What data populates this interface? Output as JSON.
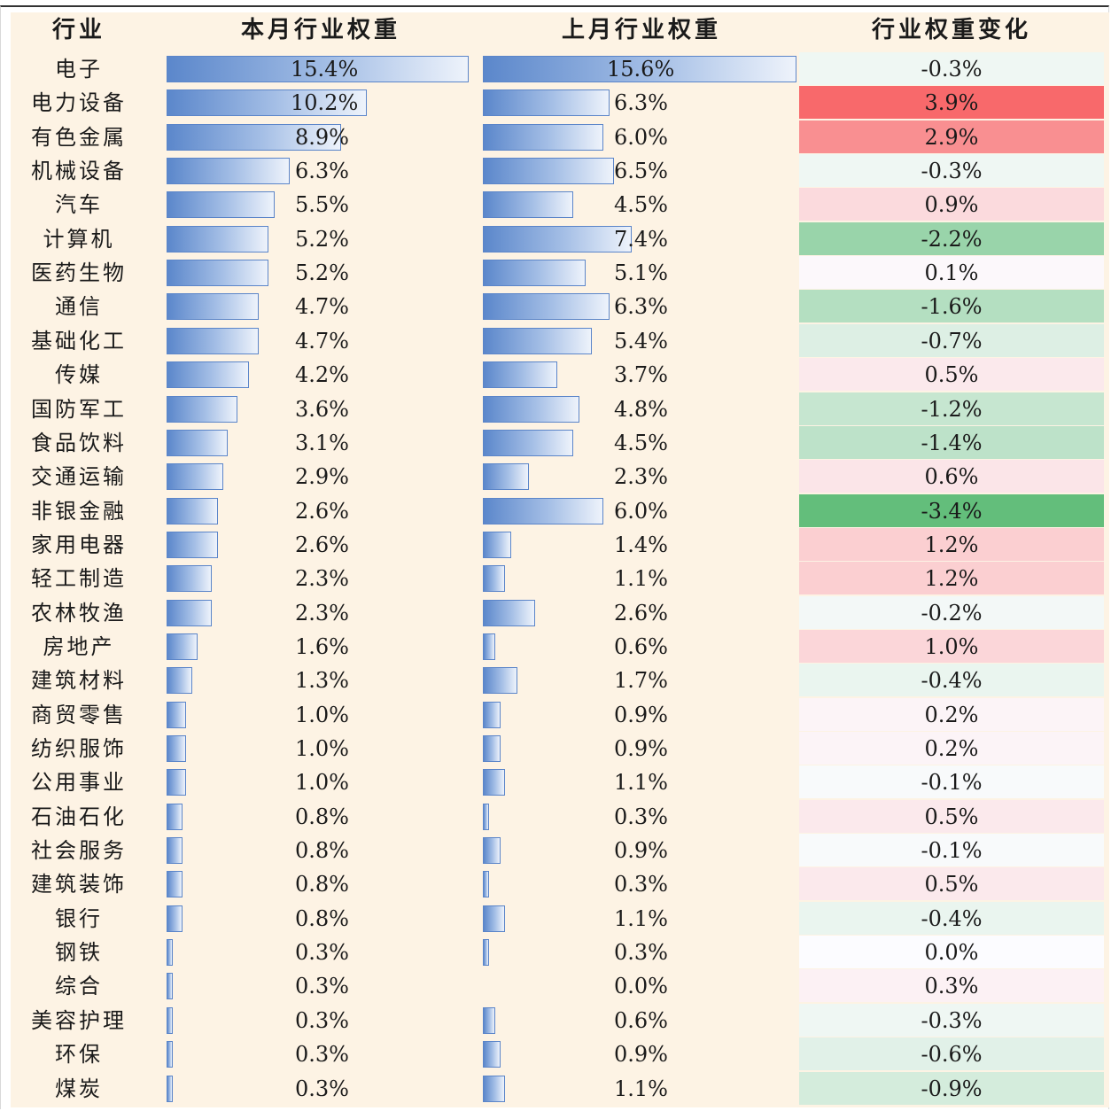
{
  "headers": [
    "行业",
    "本月行业权重",
    "上月行业权重",
    "行业权重变化"
  ],
  "chart_data": {
    "type": "table",
    "max_value": 15.6,
    "rows": [
      {
        "industry": "电子",
        "current": 15.4,
        "current_label": "15.4%",
        "previous": 15.6,
        "previous_label": "15.6%",
        "change": -0.3,
        "change_label": "-0.3%"
      },
      {
        "industry": "电力设备",
        "current": 10.2,
        "current_label": "10.2%",
        "previous": 6.3,
        "previous_label": "6.3%",
        "change": 3.9,
        "change_label": "3.9%"
      },
      {
        "industry": "有色金属",
        "current": 8.9,
        "current_label": "8.9%",
        "previous": 6.0,
        "previous_label": "6.0%",
        "change": 2.9,
        "change_label": "2.9%"
      },
      {
        "industry": "机械设备",
        "current": 6.3,
        "current_label": "6.3%",
        "previous": 6.5,
        "previous_label": "6.5%",
        "change": -0.3,
        "change_label": "-0.3%"
      },
      {
        "industry": "汽车",
        "current": 5.5,
        "current_label": "5.5%",
        "previous": 4.5,
        "previous_label": "4.5%",
        "change": 0.9,
        "change_label": "0.9%"
      },
      {
        "industry": "计算机",
        "current": 5.2,
        "current_label": "5.2%",
        "previous": 7.4,
        "previous_label": "7.4%",
        "change": -2.2,
        "change_label": "-2.2%"
      },
      {
        "industry": "医药生物",
        "current": 5.2,
        "current_label": "5.2%",
        "previous": 5.1,
        "previous_label": "5.1%",
        "change": 0.1,
        "change_label": "0.1%"
      },
      {
        "industry": "通信",
        "current": 4.7,
        "current_label": "4.7%",
        "previous": 6.3,
        "previous_label": "6.3%",
        "change": -1.6,
        "change_label": "-1.6%"
      },
      {
        "industry": "基础化工",
        "current": 4.7,
        "current_label": "4.7%",
        "previous": 5.4,
        "previous_label": "5.4%",
        "change": -0.7,
        "change_label": "-0.7%"
      },
      {
        "industry": "传媒",
        "current": 4.2,
        "current_label": "4.2%",
        "previous": 3.7,
        "previous_label": "3.7%",
        "change": 0.5,
        "change_label": "0.5%"
      },
      {
        "industry": "国防军工",
        "current": 3.6,
        "current_label": "3.6%",
        "previous": 4.8,
        "previous_label": "4.8%",
        "change": -1.2,
        "change_label": "-1.2%"
      },
      {
        "industry": "食品饮料",
        "current": 3.1,
        "current_label": "3.1%",
        "previous": 4.5,
        "previous_label": "4.5%",
        "change": -1.4,
        "change_label": "-1.4%"
      },
      {
        "industry": "交通运输",
        "current": 2.9,
        "current_label": "2.9%",
        "previous": 2.3,
        "previous_label": "2.3%",
        "change": 0.6,
        "change_label": "0.6%"
      },
      {
        "industry": "非银金融",
        "current": 2.6,
        "current_label": "2.6%",
        "previous": 6.0,
        "previous_label": "6.0%",
        "change": -3.4,
        "change_label": "-3.4%"
      },
      {
        "industry": "家用电器",
        "current": 2.6,
        "current_label": "2.6%",
        "previous": 1.4,
        "previous_label": "1.4%",
        "change": 1.2,
        "change_label": "1.2%"
      },
      {
        "industry": "轻工制造",
        "current": 2.3,
        "current_label": "2.3%",
        "previous": 1.1,
        "previous_label": "1.1%",
        "change": 1.2,
        "change_label": "1.2%"
      },
      {
        "industry": "农林牧渔",
        "current": 2.3,
        "current_label": "2.3%",
        "previous": 2.6,
        "previous_label": "2.6%",
        "change": -0.2,
        "change_label": "-0.2%"
      },
      {
        "industry": "房地产",
        "current": 1.6,
        "current_label": "1.6%",
        "previous": 0.6,
        "previous_label": "0.6%",
        "change": 1.0,
        "change_label": "1.0%"
      },
      {
        "industry": "建筑材料",
        "current": 1.3,
        "current_label": "1.3%",
        "previous": 1.7,
        "previous_label": "1.7%",
        "change": -0.4,
        "change_label": "-0.4%"
      },
      {
        "industry": "商贸零售",
        "current": 1.0,
        "current_label": "1.0%",
        "previous": 0.9,
        "previous_label": "0.9%",
        "change": 0.2,
        "change_label": "0.2%"
      },
      {
        "industry": "纺织服饰",
        "current": 1.0,
        "current_label": "1.0%",
        "previous": 0.9,
        "previous_label": "0.9%",
        "change": 0.2,
        "change_label": "0.2%"
      },
      {
        "industry": "公用事业",
        "current": 1.0,
        "current_label": "1.0%",
        "previous": 1.1,
        "previous_label": "1.1%",
        "change": -0.1,
        "change_label": "-0.1%"
      },
      {
        "industry": "石油石化",
        "current": 0.8,
        "current_label": "0.8%",
        "previous": 0.3,
        "previous_label": "0.3%",
        "change": 0.5,
        "change_label": "0.5%"
      },
      {
        "industry": "社会服务",
        "current": 0.8,
        "current_label": "0.8%",
        "previous": 0.9,
        "previous_label": "0.9%",
        "change": -0.1,
        "change_label": "-0.1%"
      },
      {
        "industry": "建筑装饰",
        "current": 0.8,
        "current_label": "0.8%",
        "previous": 0.3,
        "previous_label": "0.3%",
        "change": 0.5,
        "change_label": "0.5%"
      },
      {
        "industry": "银行",
        "current": 0.8,
        "current_label": "0.8%",
        "previous": 1.1,
        "previous_label": "1.1%",
        "change": -0.4,
        "change_label": "-0.4%"
      },
      {
        "industry": "钢铁",
        "current": 0.3,
        "current_label": "0.3%",
        "previous": 0.3,
        "previous_label": "0.3%",
        "change": 0.0,
        "change_label": "0.0%"
      },
      {
        "industry": "综合",
        "current": 0.3,
        "current_label": "0.3%",
        "previous": 0.0,
        "previous_label": "0.0%",
        "change": 0.3,
        "change_label": "0.3%"
      },
      {
        "industry": "美容护理",
        "current": 0.3,
        "current_label": "0.3%",
        "previous": 0.6,
        "previous_label": "0.6%",
        "change": -0.3,
        "change_label": "-0.3%"
      },
      {
        "industry": "环保",
        "current": 0.3,
        "current_label": "0.3%",
        "previous": 0.9,
        "previous_label": "0.9%",
        "change": -0.6,
        "change_label": "-0.6%"
      },
      {
        "industry": "煤炭",
        "current": 0.3,
        "current_label": "0.3%",
        "previous": 1.1,
        "previous_label": "1.1%",
        "change": -0.9,
        "change_label": "-0.9%"
      }
    ],
    "colors": {
      "positive": "#f8696b",
      "negative": "#63be7b",
      "neutral": "#fcfcff",
      "bar_start": "#5b87cb",
      "bar_end": "#eef3fb",
      "panel_bg": "#fdf3e4"
    }
  }
}
